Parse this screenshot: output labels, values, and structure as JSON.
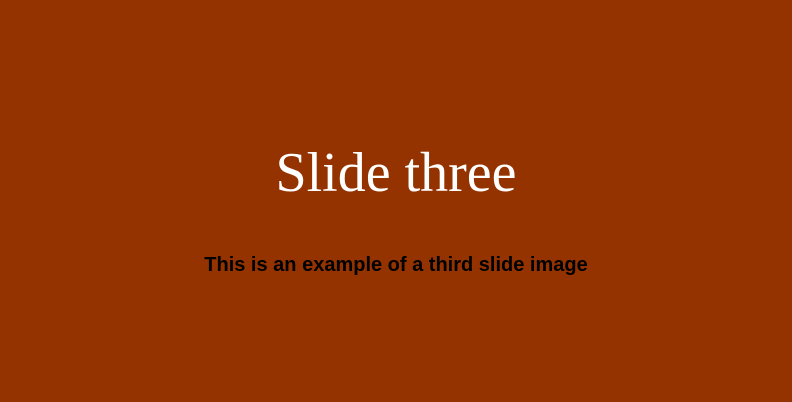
{
  "slide": {
    "title": "Slide three",
    "caption": "This is an example of a third slide image",
    "background_color": "#943300",
    "title_color": "#ffffff",
    "caption_color": "#000000"
  }
}
